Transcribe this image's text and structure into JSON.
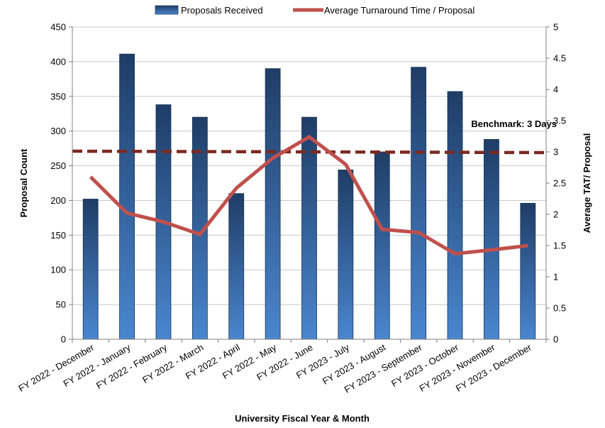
{
  "chart_data": {
    "type": "bar",
    "categories": [
      "FY 2022 - December",
      "FY 2022 - January",
      "FY 2022 - February",
      "FY 2022 - March",
      "FY 2022 - April",
      "FY 2022 - May",
      "FY 2022 - June",
      "FY 2023 - July",
      "FY 2023 - August",
      "FY 2023 - September",
      "FY 2023 - October",
      "FY 2023 - November",
      "FY 2023 - December"
    ],
    "series": [
      {
        "name": "Proposals Received",
        "type": "bar",
        "axis": "left",
        "values": [
          202,
          411,
          338,
          320,
          210,
          390,
          320,
          244,
          270,
          392,
          357,
          288,
          196
        ],
        "color": "#3a6fb0"
      },
      {
        "name": "Average Turnaround Time / Proposal",
        "type": "line",
        "axis": "right",
        "values": [
          2.6,
          2.02,
          1.88,
          1.68,
          2.42,
          2.9,
          3.24,
          2.8,
          1.76,
          1.71,
          1.37,
          1.43,
          1.5
        ],
        "color": "#c0504d"
      }
    ],
    "benchmark": {
      "label": "Benchmark: 3 Days",
      "value": 3,
      "color": "#7b2a22"
    },
    "xlabel": "University Fiscal Year & Month",
    "ylabel": "Proposal Count",
    "y2label": "Average TAT/ Proposal",
    "ylim": [
      0,
      450
    ],
    "y2lim": [
      0,
      5
    ],
    "yticks": [
      "0",
      "50",
      "100",
      "150",
      "200",
      "250",
      "300",
      "350",
      "400",
      "450"
    ],
    "y2ticks": [
      "0",
      "0.5",
      "1",
      "1.5",
      "2",
      "2.5",
      "3",
      "3.5",
      "4",
      "4.5",
      "5"
    ],
    "grid": "horizontal",
    "legend": "top-center"
  }
}
